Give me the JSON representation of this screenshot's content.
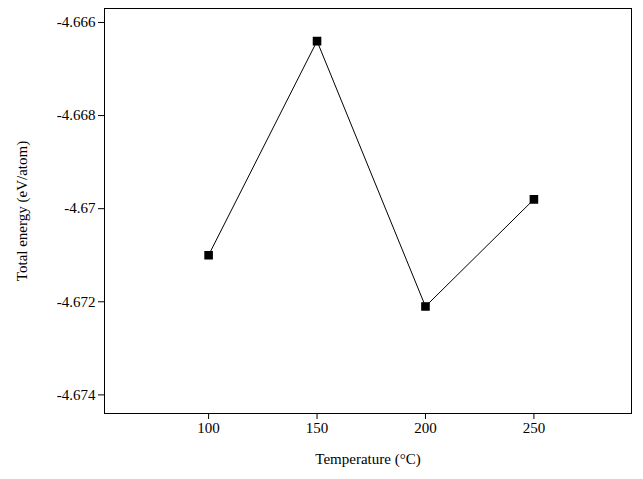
{
  "chart_data": {
    "type": "line",
    "x_label": "Temperature (°C)",
    "y_label": "Total energy (eV/atom)",
    "x": [
      100,
      150,
      200,
      250
    ],
    "series": [
      {
        "name": "Total energy",
        "color": "#000000",
        "marker": "square",
        "line_style": "solid",
        "values": [
          -4.671,
          -4.6664,
          -4.6721,
          -4.6698
        ]
      }
    ],
    "xlim": [
      52,
      295
    ],
    "xticks": [
      100,
      150,
      200,
      250
    ],
    "ylim": [
      -4.6744,
      -4.6657
    ],
    "yticks": [
      -4.674,
      -4.672,
      -4.67,
      -4.668,
      -4.666
    ],
    "grid": false
  }
}
